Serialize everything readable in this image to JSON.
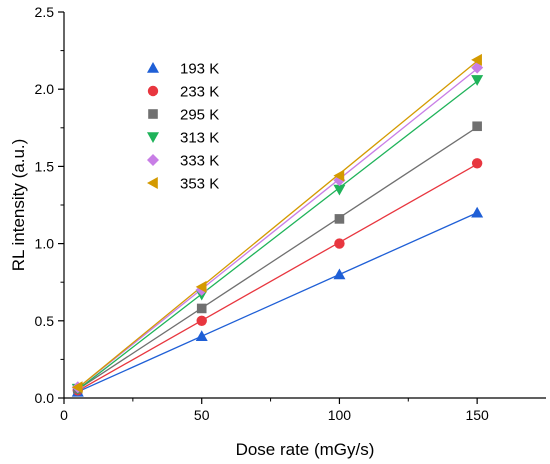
{
  "chart_data": {
    "type": "scatter",
    "xlabel": "Dose rate (mGy/s)",
    "ylabel": "RL intensity (a.u.)",
    "xlim": [
      0,
      175
    ],
    "ylim": [
      0,
      2.5
    ],
    "xticks": [
      0,
      50,
      100,
      150
    ],
    "yticks": [
      0.0,
      0.5,
      1.0,
      1.5,
      2.0,
      2.5
    ],
    "ytick_labels": [
      "0.0",
      "0.5",
      "1.0",
      "1.5",
      "2.0",
      "2.5"
    ],
    "x": [
      5,
      50,
      100,
      150
    ],
    "fit_lines": true,
    "legend_position": "top-left",
    "series": [
      {
        "name": "193 K",
        "color": "#1f5fd6",
        "marker": "triangle-up",
        "values": [
          0.04,
          0.4,
          0.8,
          1.2
        ]
      },
      {
        "name": "233 K",
        "color": "#e8363f",
        "marker": "circle",
        "values": [
          0.05,
          0.5,
          1.0,
          1.52
        ]
      },
      {
        "name": "295 K",
        "color": "#707070",
        "marker": "square",
        "values": [
          0.06,
          0.58,
          1.16,
          1.76
        ]
      },
      {
        "name": "313 K",
        "color": "#1fb35a",
        "marker": "triangle-down",
        "values": [
          0.06,
          0.67,
          1.35,
          2.06
        ]
      },
      {
        "name": "333 K",
        "color": "#c87ee6",
        "marker": "diamond",
        "values": [
          0.07,
          0.7,
          1.41,
          2.14
        ]
      },
      {
        "name": "353 K",
        "color": "#d49a00",
        "marker": "triangle-left",
        "values": [
          0.07,
          0.72,
          1.44,
          2.19
        ]
      }
    ]
  }
}
